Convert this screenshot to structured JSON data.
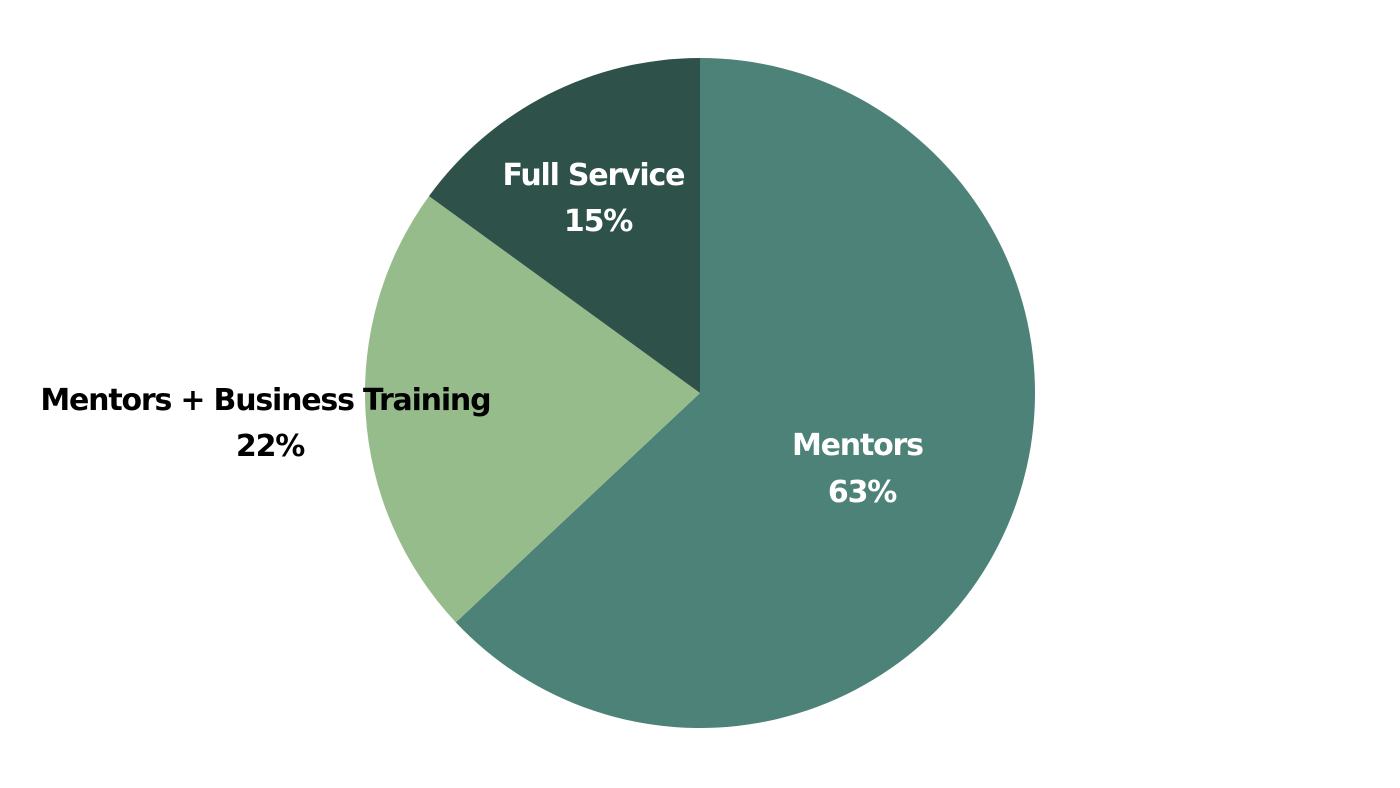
{
  "chart_data": {
    "type": "pie",
    "title": "",
    "slices": [
      {
        "label": "Mentors",
        "value": 63,
        "value_label": "63%",
        "color": "#4d8278",
        "label_color": "#ffffff"
      },
      {
        "label": "Mentors + Business Training",
        "value": 22,
        "value_label": "22%",
        "color": "#97bc8b",
        "label_color": "#000000"
      },
      {
        "label": "Full Service",
        "value": 15,
        "value_label": "15%",
        "color": "#2e524a",
        "label_color": "#ffffff"
      }
    ],
    "start_angle": "top",
    "direction": "clockwise",
    "legend": "none"
  }
}
